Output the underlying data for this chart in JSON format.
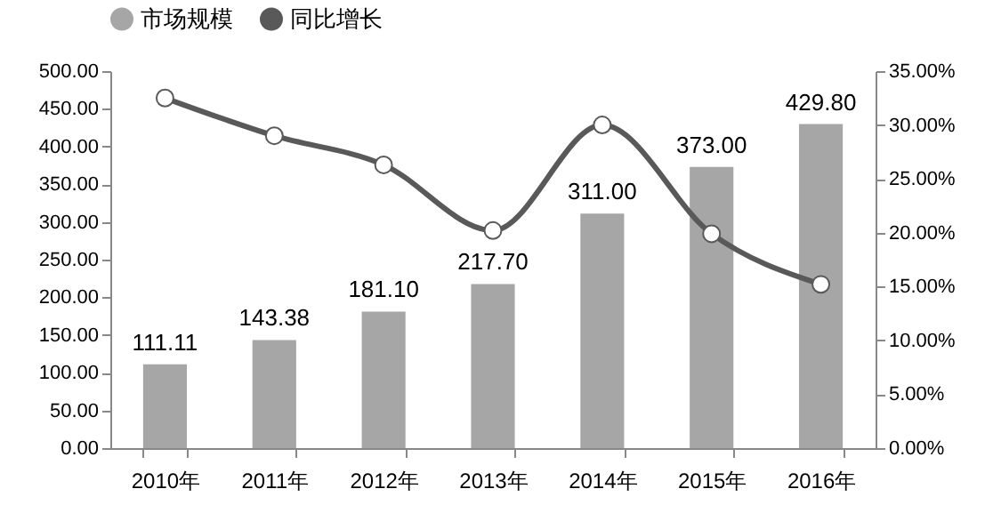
{
  "chart_data": {
    "type": "bar",
    "categories": [
      "2010年",
      "2011年",
      "2012年",
      "2013年",
      "2014年",
      "2015年",
      "2016年"
    ],
    "series": [
      {
        "name": "市场规模",
        "color": "#a6a6a6",
        "values": [
          111.11,
          143.38,
          181.1,
          217.7,
          311,
          373,
          429.8
        ],
        "value_labels": [
          "111.11",
          "143.38",
          "181.10",
          "217.70",
          "311.00",
          "373.00",
          "429.80"
        ]
      },
      {
        "name": "同比增长",
        "type": "line",
        "axis": "y2",
        "color": "#595959",
        "values": [
          32.5,
          29.0,
          26.3,
          20.2,
          30.0,
          19.9,
          15.2
        ]
      }
    ],
    "ylim": [
      0,
      500
    ],
    "yticks": [
      {
        "value": 0,
        "label": "0.00"
      },
      {
        "value": 50,
        "label": "50.00"
      },
      {
        "value": 100,
        "label": "100.00"
      },
      {
        "value": 150,
        "label": "150.00"
      },
      {
        "value": 200,
        "label": "200.00"
      },
      {
        "value": 250,
        "label": "250.00"
      },
      {
        "value": 300,
        "label": "300.00"
      },
      {
        "value": 350,
        "label": "350.00"
      },
      {
        "value": 400,
        "label": "400.00"
      },
      {
        "value": 450,
        "label": "450.00"
      },
      {
        "value": 500,
        "label": "500.00"
      }
    ],
    "y2lim": [
      0,
      35
    ],
    "y2ticks": [
      {
        "value": 0,
        "label": "0.00%"
      },
      {
        "value": 5,
        "label": "5.00%"
      },
      {
        "value": 10,
        "label": "10.00%"
      },
      {
        "value": 15,
        "label": "15.00%"
      },
      {
        "value": 20,
        "label": "20.00%"
      },
      {
        "value": 25,
        "label": "25.00%"
      },
      {
        "value": 30,
        "label": "30.00%"
      },
      {
        "value": 35,
        "label": "35.00%"
      }
    ],
    "legend": "top",
    "marker": "circle",
    "line_style": "solid",
    "grid": false
  }
}
